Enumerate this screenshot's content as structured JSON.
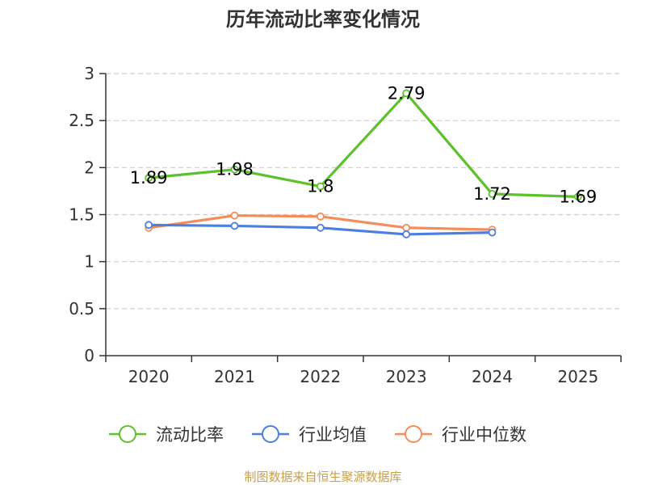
{
  "chart_data": {
    "type": "line",
    "title": "历年流动比率变化情况",
    "categories": [
      "2020",
      "2021",
      "2022",
      "2023",
      "2024",
      "2025"
    ],
    "ylim": [
      0,
      3
    ],
    "yticks": [
      "0",
      "0.5",
      "1",
      "1.5",
      "2",
      "2.5",
      "3"
    ],
    "grid": true,
    "legend_position": "bottom",
    "series": [
      {
        "name": "流动比率",
        "color": "#5cc12a",
        "values": [
          1.89,
          1.98,
          1.8,
          2.79,
          1.72,
          1.69
        ],
        "labels": [
          "1.89",
          "1.98",
          "1.8",
          "2.79",
          "1.72",
          "1.69"
        ]
      },
      {
        "name": "行业均值",
        "color": "#4d7fe0",
        "values": [
          1.39,
          1.38,
          1.36,
          1.29,
          1.31,
          null
        ]
      },
      {
        "name": "行业中位数",
        "color": "#f58d5a",
        "values": [
          1.36,
          1.49,
          1.48,
          1.36,
          1.34,
          null
        ]
      }
    ]
  },
  "source": "制图数据来自恒生聚源数据库"
}
